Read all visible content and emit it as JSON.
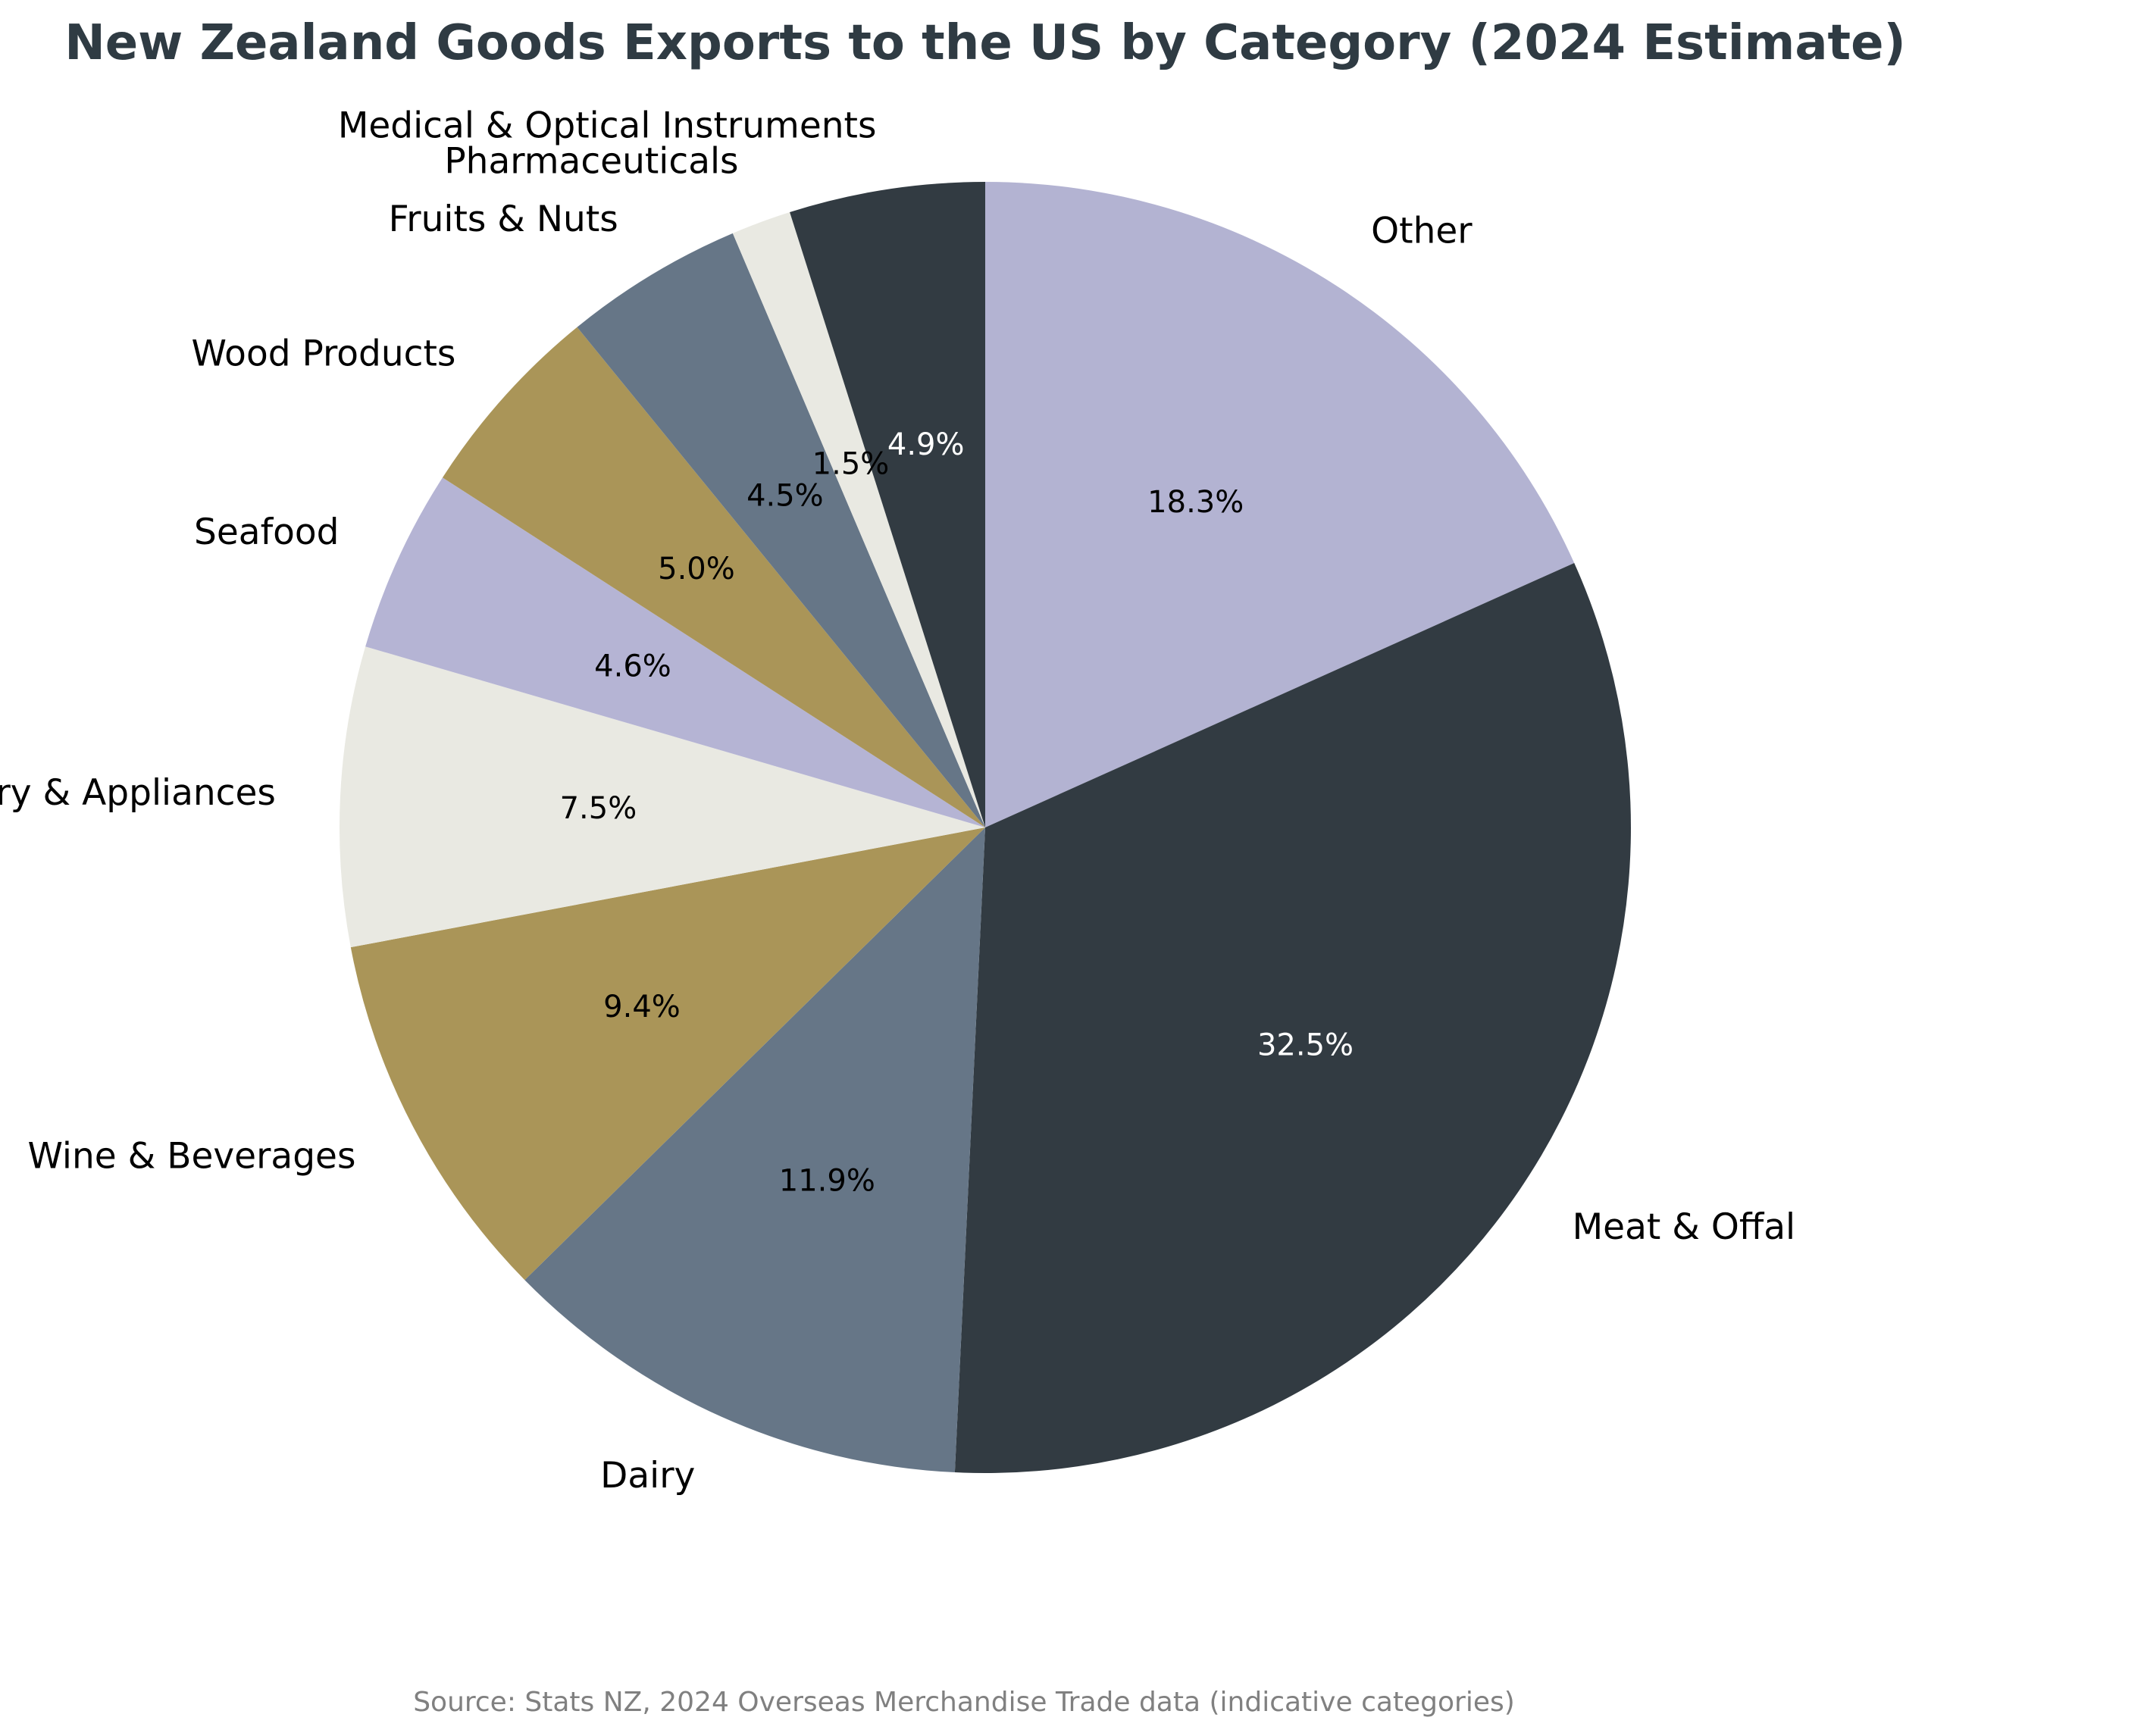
{
  "chart_data": {
    "type": "pie",
    "title": "New Zealand Goods Exports to the US by Category (2024 Estimate)",
    "source": "Source: Stats NZ, 2024 Overseas Merchandise Trade data (indicative categories)",
    "start_angle_deg": 90,
    "direction": "clockwise",
    "slices": [
      {
        "label": "Other",
        "value": 18.3,
        "pct_label": "18.3%",
        "color": "#b3b3d2",
        "pct_color": "#000000"
      },
      {
        "label": "Meat & Offal",
        "value": 32.5,
        "pct_label": "32.5%",
        "color": "#323b42",
        "pct_color": "#ffffff"
      },
      {
        "label": "Dairy",
        "value": 11.9,
        "pct_label": "11.9%",
        "color": "#667687",
        "pct_color": "#000000"
      },
      {
        "label": "Wine & Beverages",
        "value": 9.4,
        "pct_label": "9.4%",
        "color": "#aa9558",
        "pct_color": "#000000"
      },
      {
        "label": "Machinery & Appliances",
        "value": 7.5,
        "pct_label": "7.5%",
        "color": "#e9e9e2",
        "pct_color": "#000000"
      },
      {
        "label": "Seafood",
        "value": 4.6,
        "pct_label": "4.6%",
        "color": "#b5b4d4",
        "pct_color": "#000000"
      },
      {
        "label": "Wood Products",
        "value": 5.0,
        "pct_label": "5.0%",
        "color": "#aa9558",
        "pct_color": "#000000"
      },
      {
        "label": "Fruits & Nuts",
        "value": 4.5,
        "pct_label": "4.5%",
        "color": "#667687",
        "pct_color": "#000000"
      },
      {
        "label": "Pharmaceuticals",
        "value": 1.5,
        "pct_label": "1.5%",
        "color": "#e9e9e2",
        "pct_color": "#000000"
      },
      {
        "label": "Medical & Optical Instruments",
        "value": 4.9,
        "pct_label": "4.9%",
        "color": "#323b42",
        "pct_color": "#ffffff"
      }
    ]
  }
}
